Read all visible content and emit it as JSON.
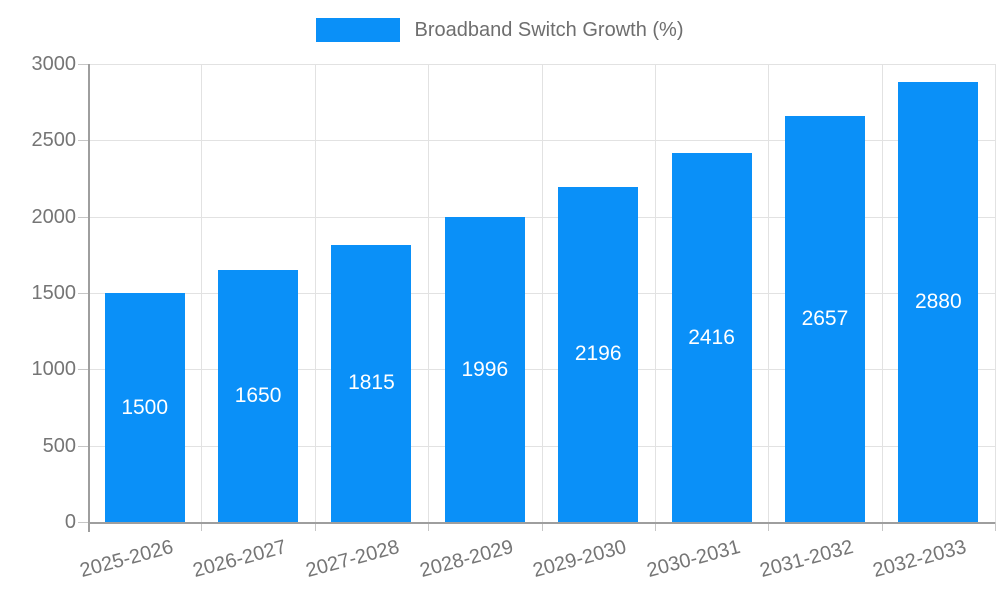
{
  "legend": {
    "label": "Broadband Switch Growth (%)"
  },
  "colors": {
    "bar": "#0a90f8",
    "grid": "#e2e2e2",
    "axis": "#9e9e9e",
    "tick": "#c6c6c6",
    "tick_label": "#757575",
    "legend_label": "#6e6e6e",
    "value_label": "#ffffff",
    "background": "#ffffff"
  },
  "chart_data": {
    "type": "bar",
    "title": "Broadband Switch Growth (%)",
    "categories": [
      "2025-2026",
      "2026-2027",
      "2027-2028",
      "2028-2029",
      "2029-2030",
      "2030-2031",
      "2031-2032",
      "2032-2033"
    ],
    "values": [
      1500,
      1650,
      1815,
      1996,
      2196,
      2416,
      2657,
      2880
    ],
    "series": [
      {
        "name": "Broadband Switch Growth (%)",
        "values": [
          1500,
          1650,
          1815,
          1996,
          2196,
          2416,
          2657,
          2880
        ]
      }
    ],
    "xlabel": "",
    "ylabel": "",
    "ylim": [
      0,
      3000
    ],
    "yticks": [
      0,
      500,
      1000,
      1500,
      2000,
      2500,
      3000
    ],
    "grid": true,
    "legend_position": "top-center",
    "value_label_position": "inside-center",
    "x_tick_rotation_deg": -15
  }
}
